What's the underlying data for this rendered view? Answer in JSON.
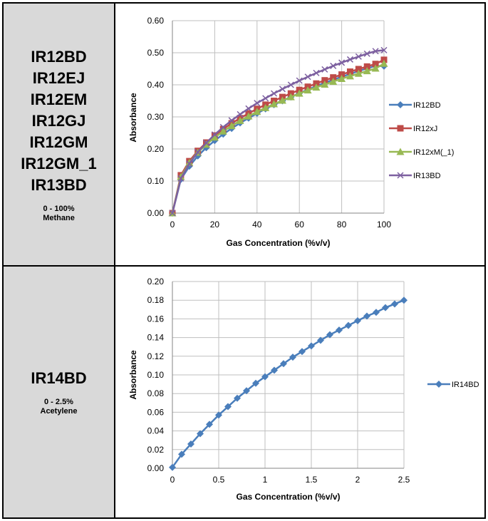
{
  "panels": [
    {
      "models": [
        "IR12BD",
        "IR12EJ",
        "IR12EM",
        "IR12GJ",
        "IR12GM",
        "IR12GM_1",
        "IR13BD"
      ],
      "range": "0 - 100%",
      "gas": "Methane"
    },
    {
      "models": [
        "IR14BD"
      ],
      "range": "0 - 2.5%",
      "gas": "Acetylene"
    }
  ],
  "chart_data": [
    {
      "type": "line",
      "xlabel": "Gas Concentration (%v/v)",
      "ylabel": "Absorbance",
      "xlim": [
        0,
        100
      ],
      "ylim": [
        0,
        0.6
      ],
      "xticks": [
        0,
        20,
        40,
        60,
        80,
        100
      ],
      "yticks": [
        0,
        0.1,
        0.2,
        0.3,
        0.4,
        0.5,
        0.6
      ],
      "xtick_labels": [
        "0",
        "20",
        "40",
        "60",
        "80",
        "100"
      ],
      "ytick_labels": [
        "0.00",
        "0.10",
        "0.20",
        "0.30",
        "0.40",
        "0.50",
        "0.60"
      ],
      "grid": true,
      "legend_position": "right",
      "x": [
        0,
        4,
        8,
        12,
        16,
        20,
        24,
        28,
        32,
        36,
        40,
        44,
        48,
        52,
        56,
        60,
        64,
        68,
        72,
        76,
        80,
        84,
        88,
        92,
        96,
        100
      ],
      "series": [
        {
          "name": "IR12BD",
          "marker": "diamond",
          "color": "#4a7ebb",
          "values": [
            0.0,
            0.105,
            0.146,
            0.178,
            0.204,
            0.226,
            0.246,
            0.264,
            0.281,
            0.296,
            0.311,
            0.325,
            0.338,
            0.35,
            0.362,
            0.374,
            0.385,
            0.396,
            0.406,
            0.416,
            0.425,
            0.434,
            0.443,
            0.451,
            0.459,
            0.458
          ]
        },
        {
          "name": "IR12xJ",
          "marker": "square",
          "color": "#be4b48",
          "values": [
            0.0,
            0.118,
            0.162,
            0.194,
            0.22,
            0.242,
            0.262,
            0.28,
            0.296,
            0.311,
            0.325,
            0.338,
            0.35,
            0.362,
            0.373,
            0.384,
            0.394,
            0.404,
            0.414,
            0.423,
            0.432,
            0.441,
            0.449,
            0.457,
            0.465,
            0.478
          ]
        },
        {
          "name": "IR12xM(_1)",
          "marker": "triangle",
          "color": "#98b954",
          "values": [
            0.0,
            0.113,
            0.157,
            0.189,
            0.214,
            0.236,
            0.255,
            0.272,
            0.288,
            0.302,
            0.316,
            0.328,
            0.34,
            0.351,
            0.362,
            0.373,
            0.383,
            0.392,
            0.401,
            0.41,
            0.419,
            0.427,
            0.435,
            0.443,
            0.451,
            0.466
          ]
        },
        {
          "name": "IR13BD",
          "marker": "x",
          "color": "#7d60a0",
          "values": [
            0.0,
            0.108,
            0.154,
            0.19,
            0.219,
            0.245,
            0.268,
            0.289,
            0.308,
            0.326,
            0.343,
            0.358,
            0.373,
            0.387,
            0.4,
            0.413,
            0.425,
            0.437,
            0.448,
            0.459,
            0.469,
            0.479,
            0.488,
            0.497,
            0.505,
            0.508
          ]
        }
      ]
    },
    {
      "type": "line",
      "xlabel": "Gas Concentration (%v/v)",
      "ylabel": "Absorbance",
      "xlim": [
        0,
        2.5
      ],
      "ylim": [
        0,
        0.2
      ],
      "xticks": [
        0,
        0.5,
        1,
        1.5,
        2,
        2.5
      ],
      "yticks": [
        0,
        0.02,
        0.04,
        0.06,
        0.08,
        0.1,
        0.12,
        0.14,
        0.16,
        0.18,
        0.2
      ],
      "xtick_labels": [
        "0",
        "0.5",
        "1",
        "1.5",
        "2",
        "2.5"
      ],
      "ytick_labels": [
        "0.00",
        "0.02",
        "0.04",
        "0.06",
        "0.08",
        "0.10",
        "0.12",
        "0.14",
        "0.16",
        "0.18",
        "0.20"
      ],
      "grid": true,
      "legend_position": "right",
      "x": [
        0,
        0.1,
        0.2,
        0.3,
        0.4,
        0.5,
        0.6,
        0.7,
        0.8,
        0.9,
        1.0,
        1.1,
        1.2,
        1.3,
        1.4,
        1.5,
        1.6,
        1.7,
        1.8,
        1.9,
        2.0,
        2.1,
        2.2,
        2.3,
        2.4,
        2.5
      ],
      "series": [
        {
          "name": "IR14BD",
          "marker": "diamond",
          "color": "#4a7ebb",
          "values": [
            0.001,
            0.015,
            0.026,
            0.037,
            0.047,
            0.057,
            0.066,
            0.075,
            0.083,
            0.091,
            0.098,
            0.105,
            0.112,
            0.119,
            0.125,
            0.131,
            0.137,
            0.143,
            0.148,
            0.153,
            0.158,
            0.163,
            0.167,
            0.172,
            0.176,
            0.18
          ]
        }
      ]
    }
  ]
}
